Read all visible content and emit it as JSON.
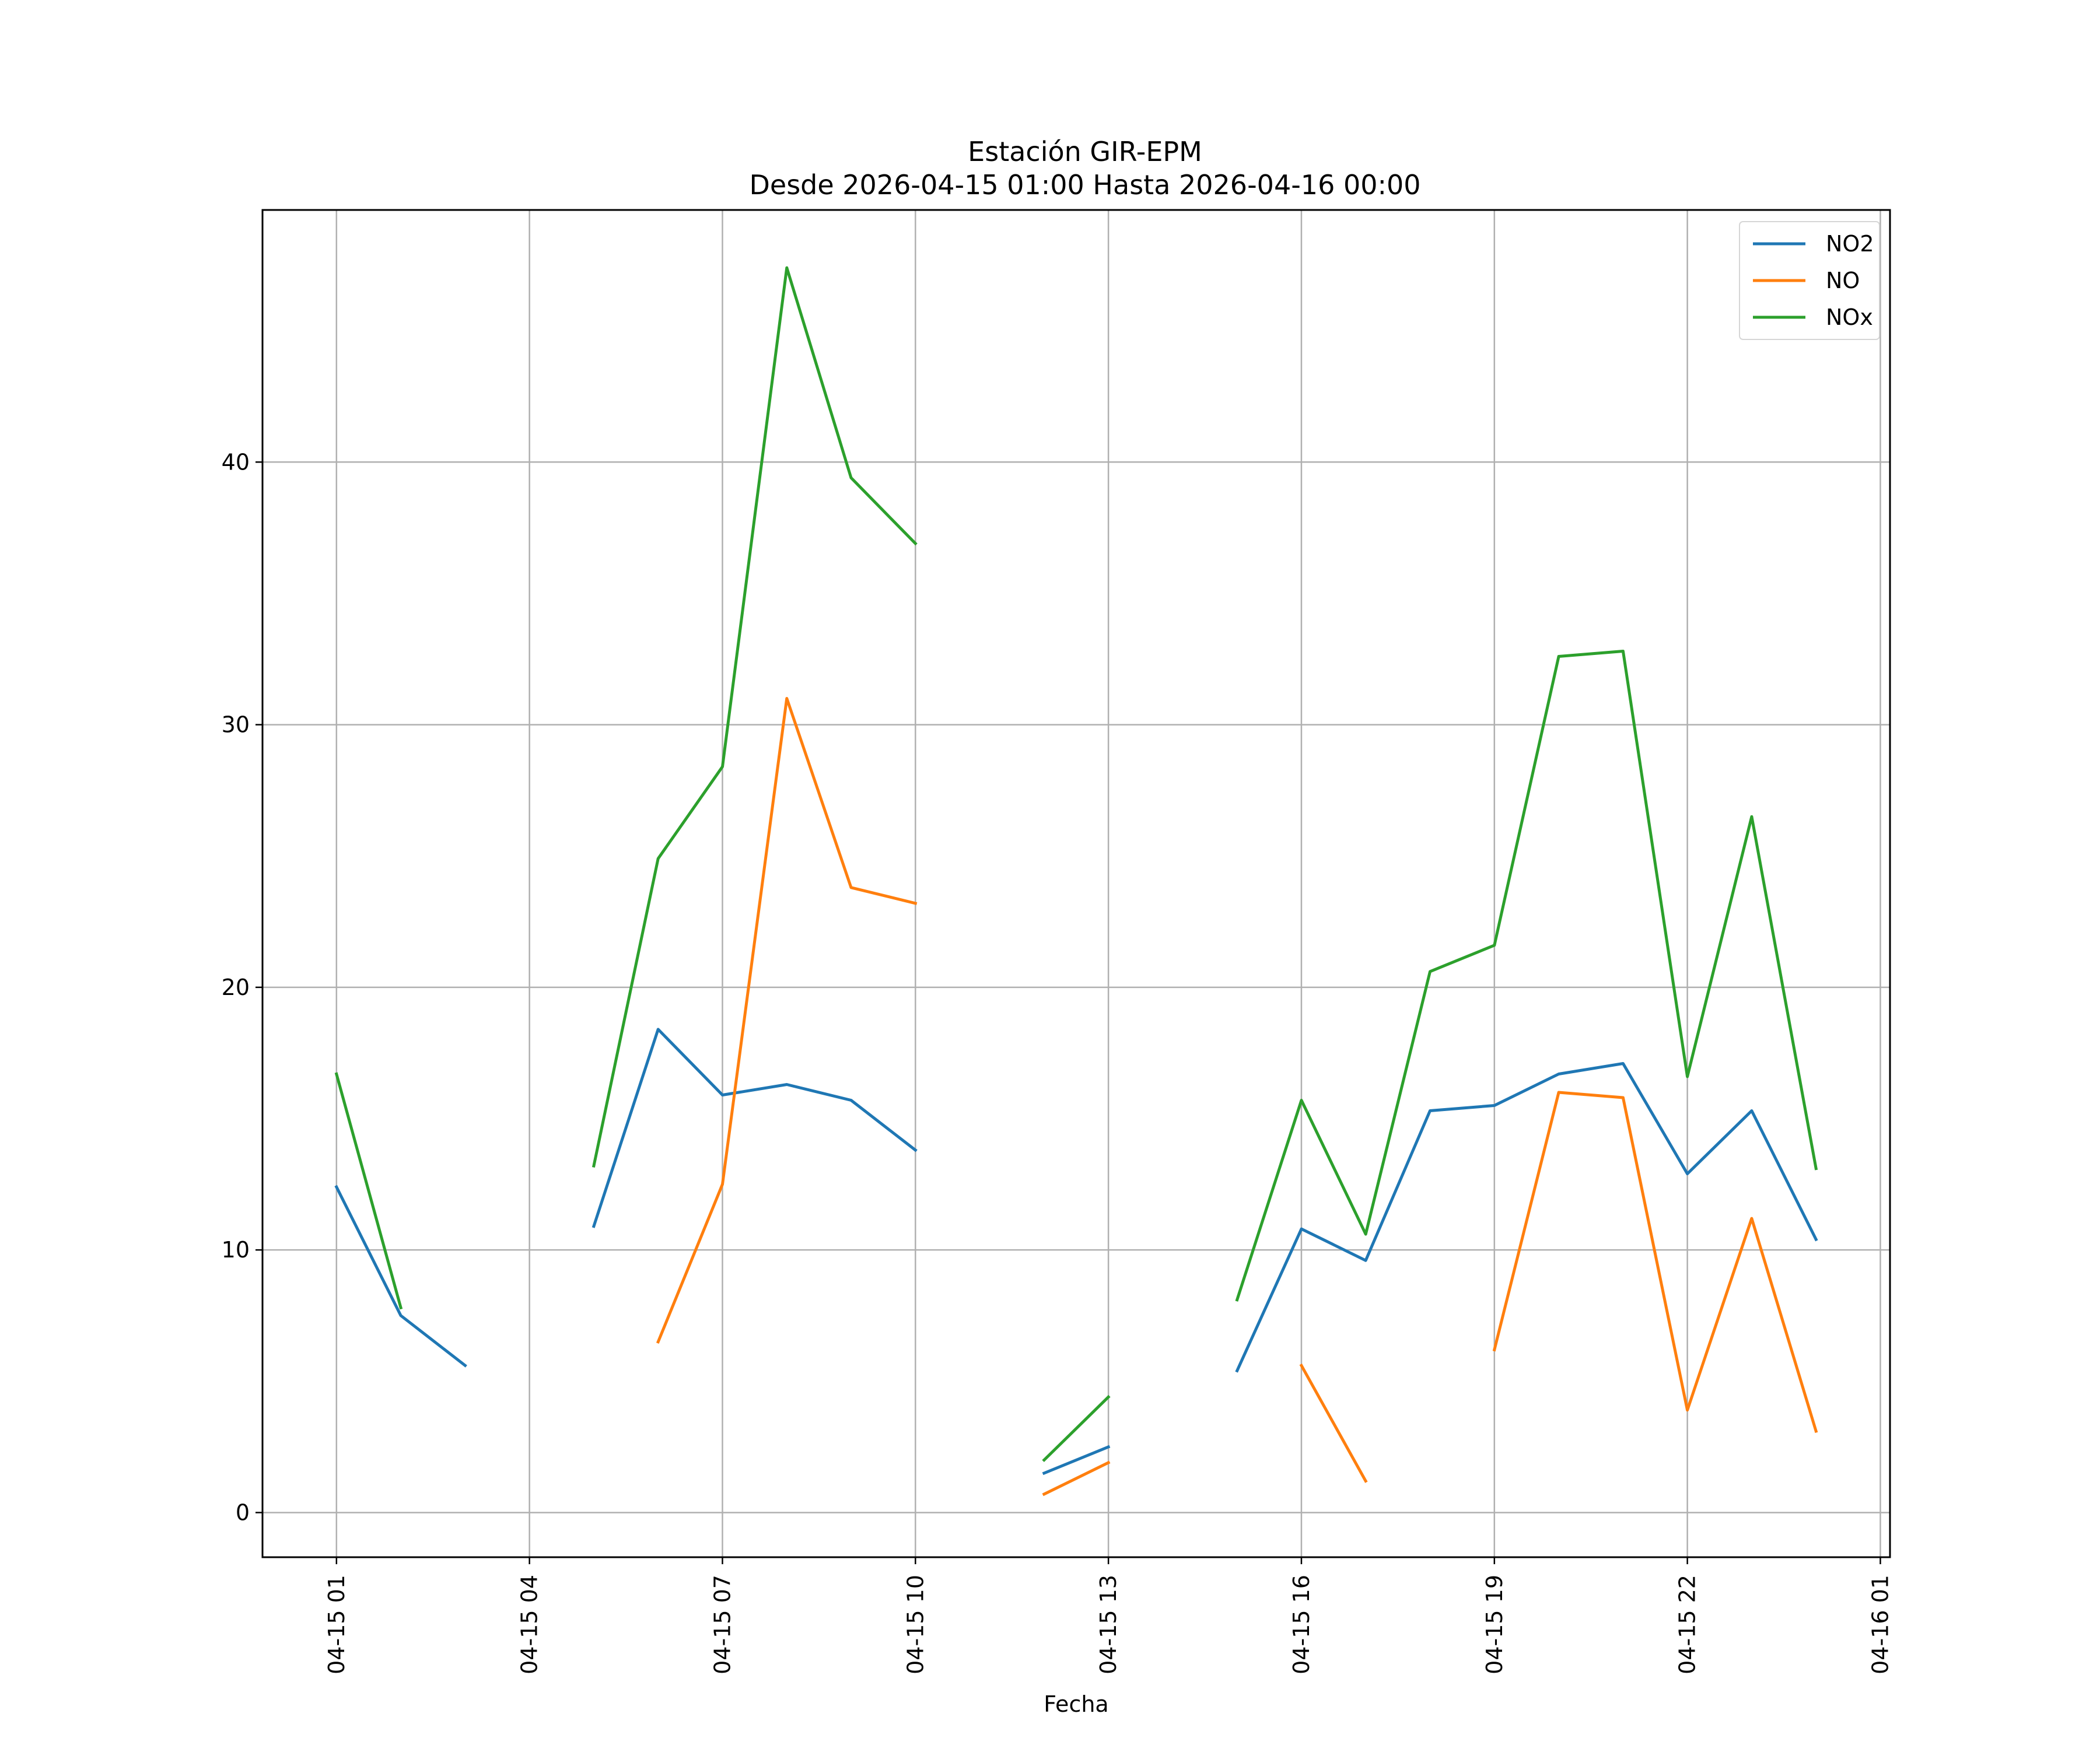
{
  "chart_data": {
    "type": "line",
    "title": "Estación GIR-EPM",
    "subtitle": "Desde 2026-04-15 01:00 Hasta 2026-04-16 00:00",
    "xlabel": "Fecha",
    "ylabel": "",
    "x": [
      "2026-04-15 01:00",
      "2026-04-15 02:00",
      "2026-04-15 03:00",
      "2026-04-15 04:00",
      "2026-04-15 05:00",
      "2026-04-15 06:00",
      "2026-04-15 07:00",
      "2026-04-15 08:00",
      "2026-04-15 09:00",
      "2026-04-15 10:00",
      "2026-04-15 11:00",
      "2026-04-15 12:00",
      "2026-04-15 13:00",
      "2026-04-15 14:00",
      "2026-04-15 15:00",
      "2026-04-15 16:00",
      "2026-04-15 17:00",
      "2026-04-15 18:00",
      "2026-04-15 19:00",
      "2026-04-15 20:00",
      "2026-04-15 21:00",
      "2026-04-15 22:00",
      "2026-04-15 23:00",
      "2026-04-16 00:00"
    ],
    "series": [
      {
        "name": "NO2",
        "color": "#1f77b4",
        "values": [
          12.4,
          7.5,
          5.6,
          null,
          10.9,
          18.4,
          15.9,
          16.3,
          15.7,
          13.8,
          null,
          1.5,
          2.5,
          null,
          5.4,
          10.8,
          9.6,
          15.3,
          15.5,
          16.7,
          17.1,
          12.9,
          15.3,
          10.4
        ]
      },
      {
        "name": "NO",
        "color": "#ff7f0e",
        "values": [
          null,
          null,
          null,
          null,
          null,
          6.5,
          12.5,
          31.0,
          23.8,
          23.2,
          null,
          0.7,
          1.9,
          null,
          null,
          5.6,
          1.2,
          null,
          6.2,
          16.0,
          15.8,
          3.9,
          11.2,
          3.1
        ]
      },
      {
        "name": "NOx",
        "color": "#2ca02c",
        "values": [
          16.7,
          7.8,
          null,
          null,
          13.2,
          24.9,
          28.4,
          47.4,
          39.4,
          36.9,
          null,
          2.0,
          4.4,
          null,
          8.1,
          15.7,
          10.6,
          20.6,
          21.6,
          32.6,
          32.8,
          16.6,
          26.5,
          13.1
        ]
      }
    ],
    "xticks": [
      "04-15 01",
      "04-15 04",
      "04-15 07",
      "04-15 10",
      "04-15 13",
      "04-15 16",
      "04-15 19",
      "04-15 22",
      "04-16 01"
    ],
    "yticks": [
      "0",
      "10",
      "20",
      "30",
      "40"
    ],
    "xlim": [
      "2026-04-14 23:51",
      "2026-04-16 01:09"
    ],
    "ylim": [
      -1.7,
      49.6
    ],
    "grid": true,
    "legend_position": "upper-right"
  }
}
